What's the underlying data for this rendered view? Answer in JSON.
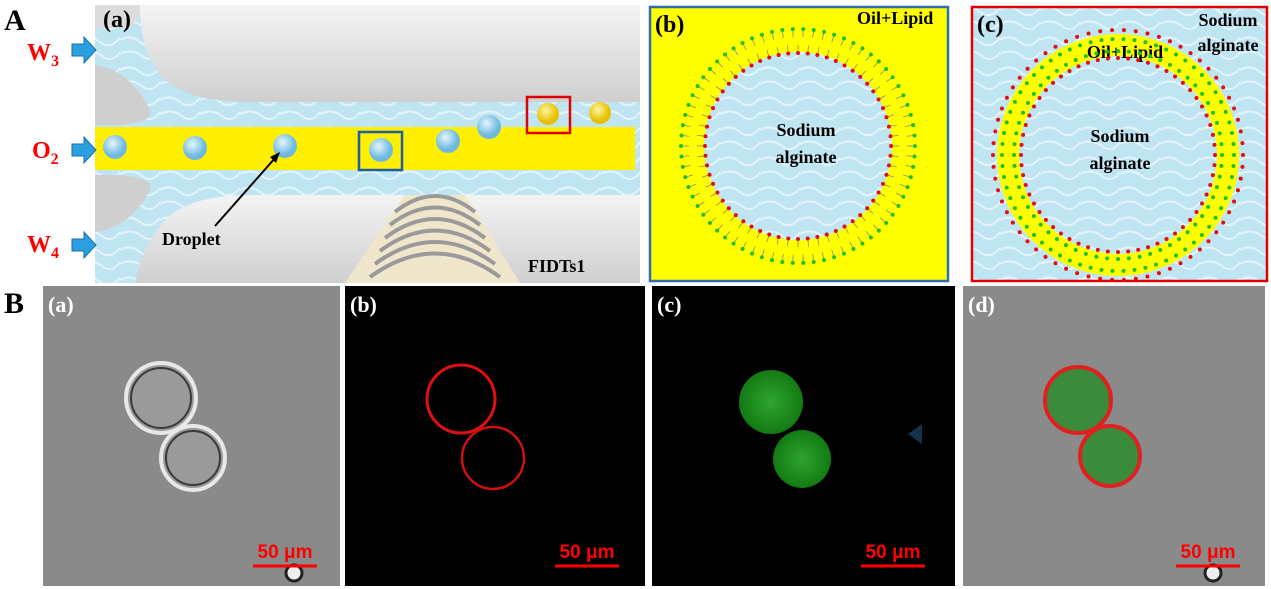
{
  "panel_A": {
    "label": "A",
    "schematic": {
      "label": "(a)",
      "inlets": [
        {
          "name": "W",
          "sub": "3"
        },
        {
          "name": "O",
          "sub": "2"
        },
        {
          "name": "W",
          "sub": "4"
        }
      ],
      "droplet_label": "Droplet",
      "device_label": "FIDTs1"
    },
    "inset_b": {
      "label": "(b)",
      "outer_label": "Oil+Lipid",
      "core_label": [
        "Sodium",
        "alginate"
      ]
    },
    "inset_c": {
      "label": "(c)",
      "outer_label": [
        "Sodium",
        "alginate"
      ],
      "shell_label": "Oil+Lipid",
      "core_label": [
        "Sodium",
        "alginate"
      ]
    }
  },
  "panel_B": {
    "label": "B",
    "images": [
      {
        "label": "(a)",
        "scale_bar": "50 μm"
      },
      {
        "label": "(b)",
        "scale_bar": "50 μm"
      },
      {
        "label": "(c)",
        "scale_bar": "50 μm"
      },
      {
        "label": "(d)",
        "scale_bar": "50 μm"
      }
    ]
  }
}
